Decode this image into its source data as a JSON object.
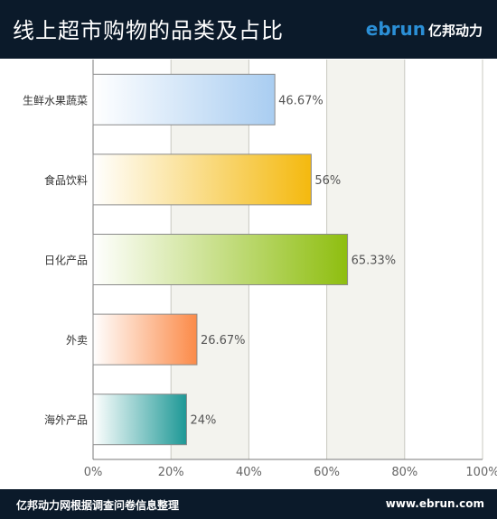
{
  "header": {
    "title": "线上超市购物的品类及占比",
    "logo_latin": "ebrun",
    "logo_cn": "亿邦动力"
  },
  "footer": {
    "source": "亿邦动力网根据调查问卷信息整理",
    "url": "www.ebrun.com"
  },
  "chart_data": {
    "type": "bar",
    "orientation": "horizontal",
    "title": "",
    "xlabel": "",
    "ylabel": "",
    "xlim": [
      0,
      100
    ],
    "x_ticks": [
      "0%",
      "20%",
      "40%",
      "60%",
      "80%",
      "100%"
    ],
    "grid": true,
    "categories": [
      "生鲜水果蔬菜",
      "食品饮料",
      "日化产品",
      "外卖",
      "海外产品"
    ],
    "values": [
      46.67,
      56,
      65.33,
      26.67,
      24
    ],
    "value_labels": [
      "46.67%",
      "56%",
      "65.33%",
      "26.67%",
      "24%"
    ],
    "bar_colors": [
      "#a9cdf1",
      "#f4b90e",
      "#8ebe0f",
      "#fb8a48",
      "#1d9896"
    ]
  }
}
